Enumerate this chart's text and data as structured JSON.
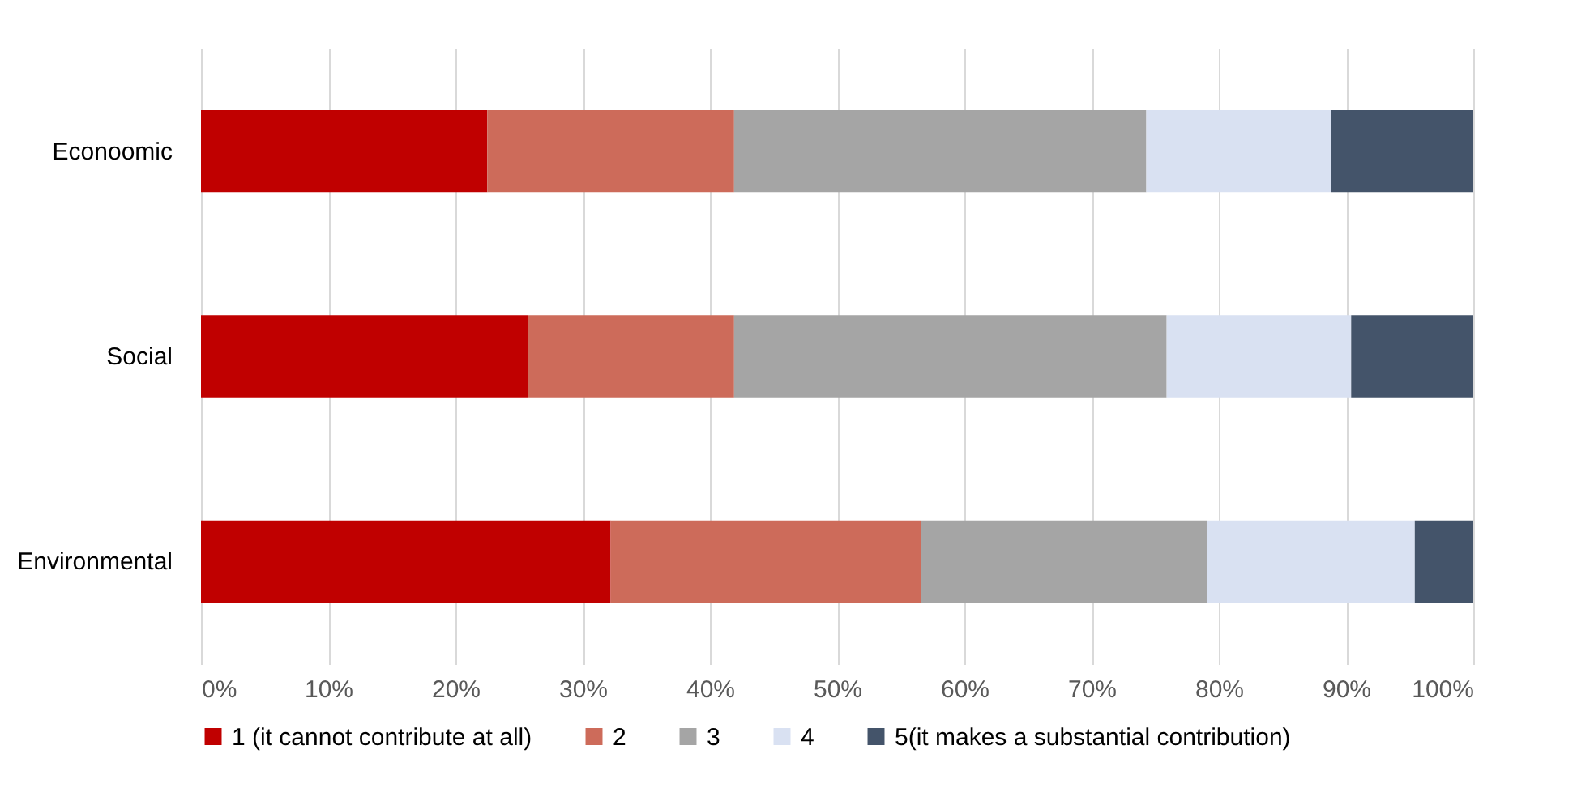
{
  "chart_data": {
    "type": "bar",
    "orientation": "horizontal",
    "stacked": true,
    "categories": [
      "Econoomic",
      "Social",
      "Environmental"
    ],
    "series": [
      {
        "name": "1 (it cannot contribute at all)",
        "color": "#c00000",
        "values": [
          22.5,
          25.7,
          32.2
        ]
      },
      {
        "name": "2",
        "color": "#cd6b5a",
        "values": [
          19.4,
          16.2,
          24.4
        ]
      },
      {
        "name": "3",
        "color": "#a5a5a5",
        "values": [
          32.4,
          34.0,
          22.5
        ]
      },
      {
        "name": "4",
        "color": "#d9e1f2",
        "values": [
          14.5,
          14.5,
          16.3
        ]
      },
      {
        "name": "5(it makes a substantial contribution)",
        "color": "#44546a",
        "values": [
          11.2,
          9.6,
          4.6
        ]
      }
    ],
    "xlim": [
      0,
      100
    ],
    "xticks": [
      {
        "value": 0,
        "label": "0%"
      },
      {
        "value": 10,
        "label": "10%"
      },
      {
        "value": 20,
        "label": "20%"
      },
      {
        "value": 30,
        "label": "30%"
      },
      {
        "value": 40,
        "label": "40%"
      },
      {
        "value": 50,
        "label": "50%"
      },
      {
        "value": 60,
        "label": "60%"
      },
      {
        "value": 70,
        "label": "70%"
      },
      {
        "value": 80,
        "label": "80%"
      },
      {
        "value": 90,
        "label": "90%"
      },
      {
        "value": 100,
        "label": "100%"
      }
    ],
    "grid": "x",
    "legend": "bottom"
  }
}
